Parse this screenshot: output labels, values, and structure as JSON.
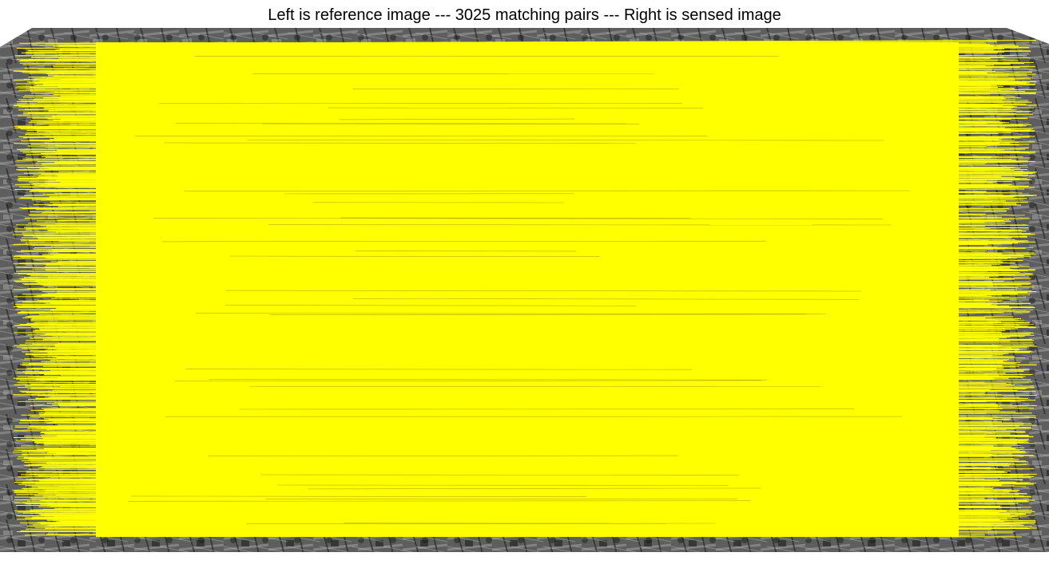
{
  "figure": {
    "title": "Left is reference image --- 3025 matching pairs --- Right is sensed image"
  },
  "images": {
    "reference": {
      "label": "reference image",
      "position": "left"
    },
    "sensed": {
      "label": "sensed image",
      "position": "right"
    }
  },
  "matches": {
    "count": 3025,
    "line_color": "#ffff00"
  }
}
